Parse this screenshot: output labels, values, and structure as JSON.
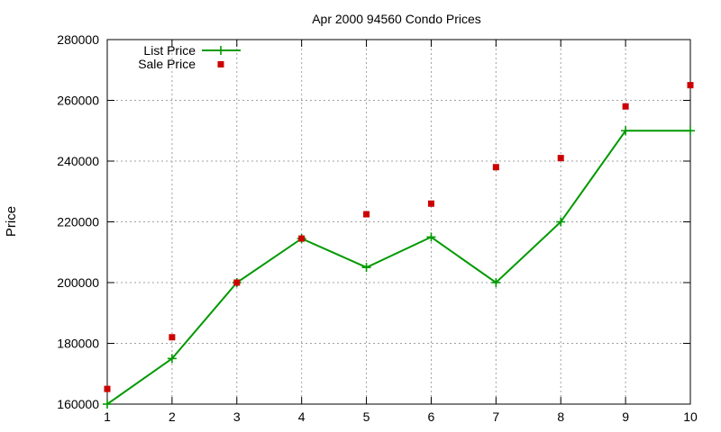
{
  "chart_data": {
    "type": "line",
    "title": "Apr 2000 94560 Condo Prices",
    "xlabel": "",
    "ylabel": "Price",
    "xlim": [
      1,
      10
    ],
    "ylim": [
      160000,
      280000
    ],
    "x_ticks": [
      1,
      2,
      3,
      4,
      5,
      6,
      7,
      8,
      9,
      10
    ],
    "y_ticks": [
      160000,
      180000,
      200000,
      220000,
      240000,
      260000,
      280000
    ],
    "grid": true,
    "legend_position": "top-left",
    "series": [
      {
        "name": "List Price",
        "style": "line+cross",
        "color": "#009900",
        "x": [
          1,
          2,
          3,
          4,
          5,
          6,
          7,
          8,
          9,
          10
        ],
        "y": [
          160000,
          175000,
          200000,
          214500,
          205000,
          215000,
          200000,
          220000,
          250000,
          250000
        ]
      },
      {
        "name": "Sale Price",
        "style": "square",
        "color": "#cc0000",
        "x": [
          1,
          2,
          3,
          4,
          5,
          6,
          7,
          8,
          9,
          10
        ],
        "y": [
          165000,
          182000,
          200000,
          214500,
          222500,
          226000,
          238000,
          241000,
          258000,
          265000
        ]
      }
    ]
  }
}
